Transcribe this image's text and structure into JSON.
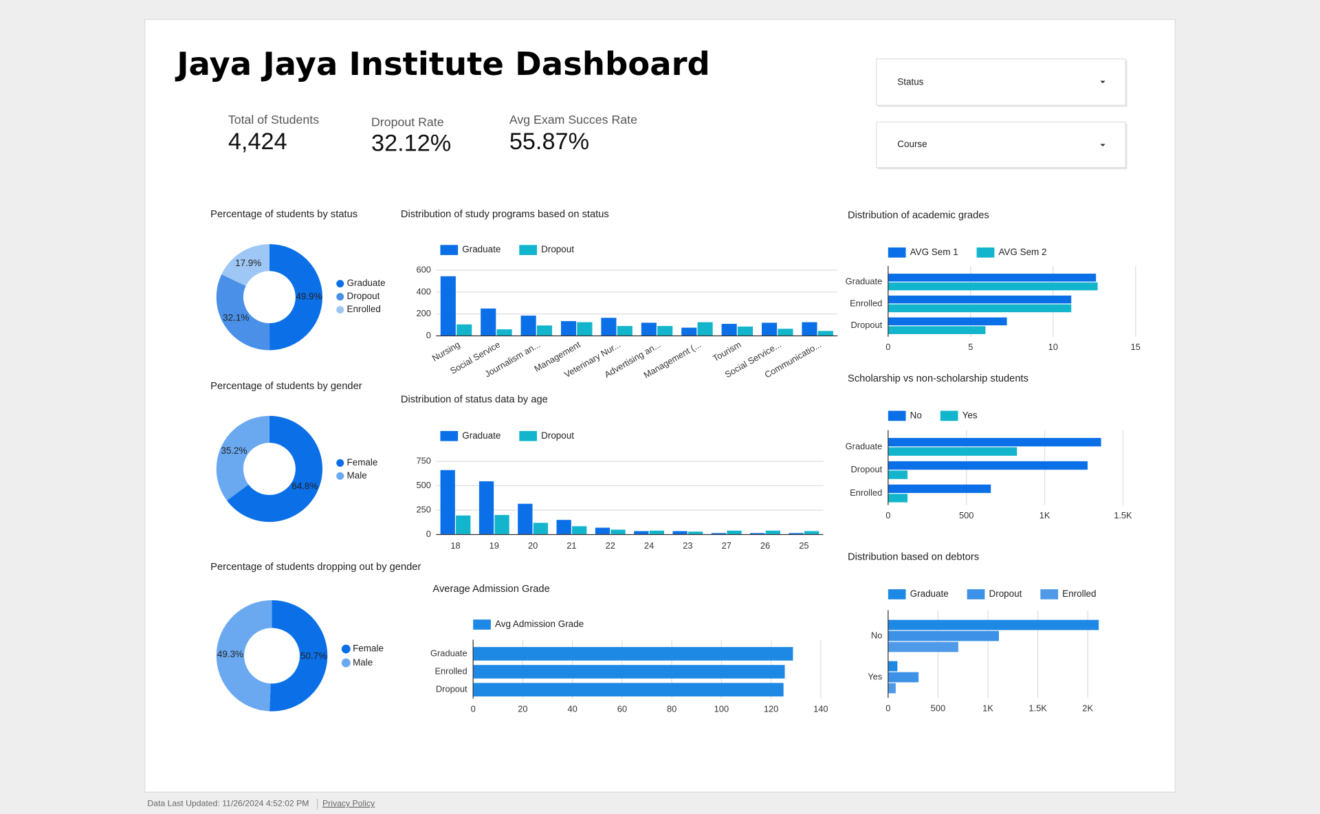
{
  "header": {
    "title": "Jaya Jaya Institute Dashboard"
  },
  "kpis": [
    {
      "label": "Total of Students",
      "value": "4,424"
    },
    {
      "label": "Dropout Rate",
      "value": "32.12%"
    },
    {
      "label": "Avg Exam Succes Rate",
      "value": "55.87%"
    }
  ],
  "filters": [
    "Status",
    "Course"
  ],
  "footer": {
    "updated": "Data Last Updated: 11/26/2024 4:52:02 PM",
    "privacy": "Privacy Policy"
  },
  "chart_data": [
    {
      "type": "donut",
      "title": "Percentage of students by status",
      "categories": [
        "Graduate",
        "Dropout",
        "Enrolled"
      ],
      "values": [
        49.9,
        32.1,
        17.9
      ],
      "value_labels": [
        "49.9%",
        "32.1%",
        "17.9%"
      ],
      "colors": [
        "#0b6fe8",
        "#4a90e8",
        "#9ec7f5"
      ]
    },
    {
      "type": "donut",
      "title": "Percentage of students by gender",
      "categories": [
        "Female",
        "Male"
      ],
      "values": [
        64.8,
        35.2
      ],
      "value_labels": [
        "64.8%",
        "35.2%"
      ],
      "colors": [
        "#0b6fe8",
        "#6aa8f0"
      ]
    },
    {
      "type": "donut",
      "title": "Percentage of students dropping out by gender",
      "categories": [
        "Female",
        "Male"
      ],
      "values": [
        50.7,
        49.3
      ],
      "value_labels": [
        "50.7%",
        "49.3%"
      ],
      "colors": [
        "#0b6fe8",
        "#6aa8f0"
      ]
    },
    {
      "type": "bar",
      "title": "Distribution of study programs based on status",
      "categories": [
        "Nursing",
        "Social Service",
        "Journalism an...",
        "Management",
        "Veterinary Nur...",
        "Advertising an...",
        "Management (...",
        "Tourism",
        "Social Service...",
        "Communicatio..."
      ],
      "series": [
        {
          "name": "Graduate",
          "color": "#0b6fe8",
          "values": [
            545,
            250,
            185,
            135,
            165,
            120,
            75,
            110,
            120,
            125
          ]
        },
        {
          "name": "Dropout",
          "color": "#12b5cb",
          "values": [
            105,
            60,
            95,
            125,
            90,
            90,
            125,
            85,
            65,
            45
          ]
        }
      ],
      "ylim": [
        0,
        600
      ],
      "yticks": [
        0,
        200,
        400,
        600
      ],
      "grid": true
    },
    {
      "type": "bar",
      "title": "Distribution of status data by age",
      "categories": [
        "18",
        "19",
        "20",
        "21",
        "22",
        "24",
        "23",
        "27",
        "26",
        "25"
      ],
      "series": [
        {
          "name": "Graduate",
          "color": "#0b6fe8",
          "values": [
            660,
            545,
            315,
            150,
            70,
            35,
            35,
            15,
            15,
            15
          ]
        },
        {
          "name": "Dropout",
          "color": "#12b5cb",
          "values": [
            195,
            200,
            120,
            85,
            50,
            40,
            30,
            40,
            40,
            35
          ]
        }
      ],
      "ylim": [
        0,
        750
      ],
      "yticks": [
        0,
        250,
        500,
        750
      ],
      "grid": true
    },
    {
      "type": "barh",
      "title": "Average Admission Grade",
      "categories": [
        "Graduate",
        "Enrolled",
        "Dropout"
      ],
      "series": [
        {
          "name": "Avg Admission Grade",
          "color": "#1e88e5",
          "values": [
            128.8,
            125.5,
            125.0
          ]
        }
      ],
      "xlim": [
        0,
        140
      ],
      "xticks": [
        0,
        20,
        40,
        60,
        80,
        100,
        120,
        140
      ],
      "grid": true
    },
    {
      "type": "barh",
      "title": "Distribution of academic grades",
      "categories": [
        "Graduate",
        "Enrolled",
        "Dropout"
      ],
      "series": [
        {
          "name": "AVG Sem 1",
          "color": "#0b6fe8",
          "values": [
            12.6,
            11.1,
            7.2
          ]
        },
        {
          "name": "AVG Sem 2",
          "color": "#12b5cb",
          "values": [
            12.7,
            11.1,
            5.9
          ]
        }
      ],
      "xlim": [
        0,
        15
      ],
      "xticks": [
        0,
        5,
        10,
        15
      ],
      "grid": true
    },
    {
      "type": "barh",
      "title": "Scholarship vs non-scholarship students",
      "categories": [
        "Graduate",
        "Dropout",
        "Enrolled"
      ],
      "series": [
        {
          "name": "No",
          "color": "#0b6fe8",
          "values": [
            1360,
            1274,
            656
          ]
        },
        {
          "name": "Yes",
          "color": "#12b5cb",
          "values": [
            823,
            124,
            124
          ]
        }
      ],
      "xlim": [
        0,
        1500
      ],
      "xticks": [
        0,
        500,
        {
          "value": 1000,
          "label": "1K"
        },
        {
          "value": 1500,
          "label": "1.5K"
        }
      ],
      "grid": true
    },
    {
      "type": "barh",
      "title": "Distribution based on debtors",
      "categories": [
        "No",
        "Yes"
      ],
      "series": [
        {
          "name": "Graduate",
          "color": "#1e88e5",
          "values": [
            2110,
            93
          ]
        },
        {
          "name": "Dropout",
          "color": "#3d91e6",
          "values": [
            1110,
            305
          ]
        },
        {
          "name": "Enrolled",
          "color": "#4f9ae8",
          "values": [
            703,
            76
          ]
        }
      ],
      "xlim": [
        0,
        2100
      ],
      "xticks": [
        0,
        500,
        {
          "value": 1000,
          "label": "1K"
        },
        {
          "value": 1500,
          "label": "1.5K"
        },
        {
          "value": 2000,
          "label": "2K"
        }
      ],
      "grid": true
    }
  ]
}
